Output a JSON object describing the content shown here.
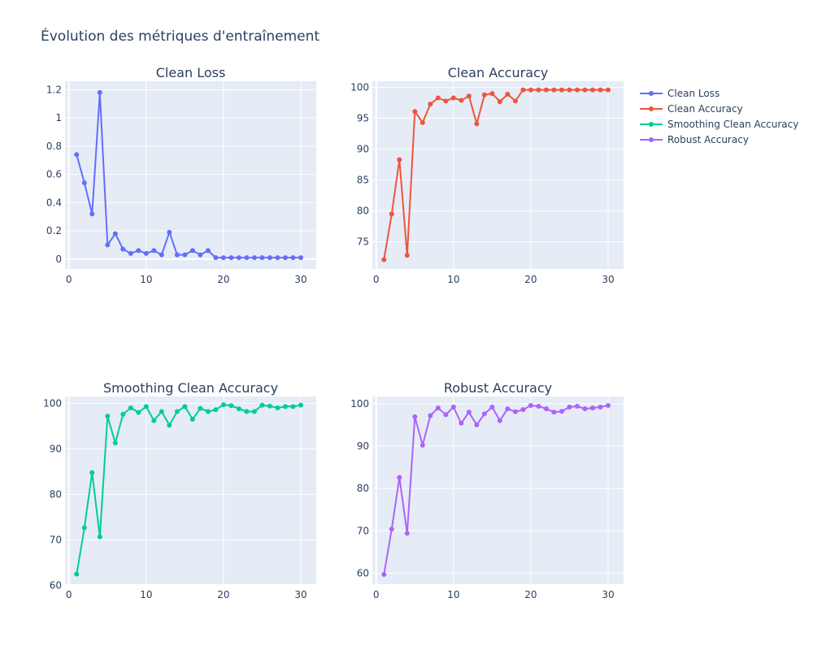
{
  "title": "Évolution des métriques d'entraînement",
  "legend": [
    {
      "name": "Clean Loss",
      "color": "#636efa"
    },
    {
      "name": "Clean Accuracy",
      "color": "#ef553b"
    },
    {
      "name": "Smoothing Clean Accuracy",
      "color": "#00cc96"
    },
    {
      "name": "Robust Accuracy",
      "color": "#ab63fa"
    }
  ],
  "chart_data": [
    {
      "type": "line",
      "title": "Clean Loss",
      "color": "#636efa",
      "x": [
        1,
        2,
        3,
        4,
        5,
        6,
        7,
        8,
        9,
        10,
        11,
        12,
        13,
        14,
        15,
        16,
        17,
        18,
        19,
        20,
        21,
        22,
        23,
        24,
        25,
        26,
        27,
        28,
        29,
        30
      ],
      "values": [
        0.74,
        0.54,
        0.32,
        1.18,
        0.1,
        0.18,
        0.07,
        0.04,
        0.06,
        0.04,
        0.06,
        0.03,
        0.19,
        0.03,
        0.03,
        0.06,
        0.03,
        0.06,
        0.01,
        0.01,
        0.01,
        0.01,
        0.01,
        0.01,
        0.01,
        0.01,
        0.01,
        0.01,
        0.01,
        0.01
      ],
      "xlim": [
        -0.5,
        32
      ],
      "ylim": [
        -0.07,
        1.26
      ],
      "xticks": [
        0,
        10,
        20,
        30
      ],
      "yticks": [
        0,
        0.2,
        0.4,
        0.6,
        0.8,
        1,
        1.2
      ],
      "ytick_labels": [
        "0",
        "0.2",
        "0.4",
        "0.6",
        "0.8",
        "1",
        "1.2"
      ]
    },
    {
      "type": "line",
      "title": "Clean Accuracy",
      "color": "#ef553b",
      "x": [
        1,
        2,
        3,
        4,
        5,
        6,
        7,
        8,
        9,
        10,
        11,
        12,
        13,
        14,
        15,
        16,
        17,
        18,
        19,
        20,
        21,
        22,
        23,
        24,
        25,
        26,
        27,
        28,
        29,
        30
      ],
      "values": [
        72.1,
        79.5,
        88.3,
        72.8,
        96.1,
        94.3,
        97.3,
        98.3,
        97.8,
        98.3,
        97.9,
        98.6,
        94.1,
        98.8,
        99.0,
        97.7,
        98.9,
        97.8,
        99.6,
        99.6,
        99.6,
        99.6,
        99.6,
        99.6,
        99.6,
        99.6,
        99.6,
        99.6,
        99.6,
        99.6
      ],
      "xlim": [
        -0.5,
        32
      ],
      "ylim": [
        70.6,
        101.0
      ],
      "xticks": [
        0,
        10,
        20,
        30
      ],
      "yticks": [
        75,
        80,
        85,
        90,
        95,
        100
      ],
      "ytick_labels": [
        "75",
        "80",
        "85",
        "90",
        "95",
        "100"
      ]
    },
    {
      "type": "line",
      "title": "Smoothing Clean Accuracy",
      "color": "#00cc96",
      "x": [
        1,
        2,
        3,
        4,
        5,
        6,
        7,
        8,
        9,
        10,
        11,
        12,
        13,
        14,
        15,
        16,
        17,
        18,
        19,
        20,
        21,
        22,
        23,
        24,
        25,
        26,
        27,
        28,
        29,
        30
      ],
      "values": [
        62.5,
        72.7,
        84.8,
        70.7,
        97.2,
        91.3,
        97.6,
        99.0,
        98.0,
        99.3,
        96.2,
        98.2,
        95.2,
        98.2,
        99.3,
        96.5,
        98.9,
        98.2,
        98.6,
        99.7,
        99.5,
        98.8,
        98.2,
        98.2,
        99.6,
        99.4,
        99.0,
        99.3,
        99.3,
        99.6
      ],
      "xlim": [
        -0.5,
        32
      ],
      "ylim": [
        60.3,
        101.5
      ],
      "xticks": [
        0,
        10,
        20,
        30
      ],
      "yticks": [
        60,
        70,
        80,
        90,
        100
      ],
      "ytick_labels": [
        "60",
        "70",
        "80",
        "90",
        "100"
      ]
    },
    {
      "type": "line",
      "title": "Robust Accuracy",
      "color": "#ab63fa",
      "x": [
        1,
        2,
        3,
        4,
        5,
        6,
        7,
        8,
        9,
        10,
        11,
        12,
        13,
        14,
        15,
        16,
        17,
        18,
        19,
        20,
        21,
        22,
        23,
        24,
        25,
        26,
        27,
        28,
        29,
        30
      ],
      "values": [
        59.7,
        70.4,
        82.6,
        69.4,
        96.9,
        90.2,
        97.2,
        99.0,
        97.4,
        99.2,
        95.4,
        98.0,
        95.0,
        97.6,
        99.2,
        96.0,
        98.8,
        98.1,
        98.6,
        99.6,
        99.4,
        98.8,
        98.0,
        98.2,
        99.2,
        99.4,
        98.8,
        99.0,
        99.2,
        99.6
      ],
      "xlim": [
        -0.5,
        32
      ],
      "ylim": [
        57.4,
        101.7
      ],
      "xticks": [
        0,
        10,
        20,
        30
      ],
      "yticks": [
        60,
        70,
        80,
        90,
        100
      ],
      "ytick_labels": [
        "60",
        "70",
        "80",
        "90",
        "100"
      ]
    }
  ]
}
